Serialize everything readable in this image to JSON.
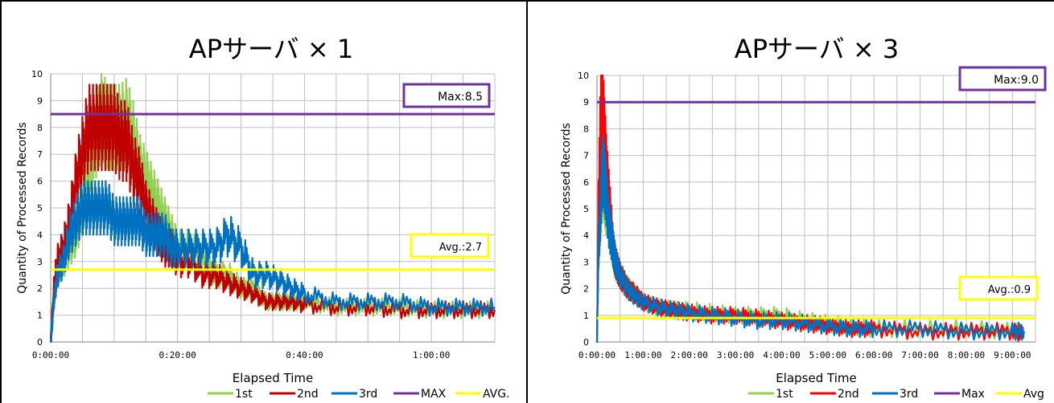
{
  "chart_data": [
    {
      "type": "line",
      "title": "APサーバ × 1",
      "xlabel": "Elapsed Time",
      "ylabel": "Quantity of Processed Records",
      "xlim": [
        "0:00:00",
        "1:10:00"
      ],
      "ylim": [
        0,
        10
      ],
      "y_ticks": [
        "0",
        "1",
        "2",
        "3",
        "4",
        "5",
        "6",
        "7",
        "8",
        "9",
        "10"
      ],
      "x_ticks": [
        "0:00:00",
        "0:20:00",
        "0:40:00",
        "1:00:00"
      ],
      "grid": true,
      "legend_position": "bottom",
      "legend": [
        "1st",
        "2nd",
        "3rd",
        "MAX",
        "AVG."
      ],
      "max": {
        "value": 8.5,
        "label": "Max:8.5"
      },
      "avg": {
        "value": 2.7,
        "label": "Avg.:2.7"
      },
      "colors": {
        "1st": "#92d050",
        "2nd": "#c00000",
        "3rd": "#0070c0",
        "max": "#7030a0",
        "avg": "#ffff00"
      },
      "series": [
        {
          "name": "1st",
          "x_minutes": [
            0,
            0.5,
            1,
            2,
            3,
            4,
            5,
            6,
            7,
            8,
            9,
            10,
            11,
            12,
            13,
            14,
            15,
            16,
            17,
            18,
            19,
            20,
            22,
            24,
            26,
            28,
            30,
            32,
            34,
            36,
            38,
            40,
            45,
            50,
            55,
            60,
            65,
            70
          ],
          "values": [
            0,
            1.5,
            2.5,
            3,
            3.5,
            4,
            5,
            6.5,
            7.5,
            8.5,
            8,
            8,
            8,
            8.2,
            7.5,
            6.5,
            6,
            5.5,
            5,
            4.5,
            4,
            3.5,
            3.5,
            3,
            2.5,
            2.5,
            2,
            2,
            1.5,
            1.5,
            1.5,
            1.5,
            1.3,
            1.3,
            1.3,
            1.2,
            1.2,
            1.2
          ]
        },
        {
          "name": "2nd",
          "x_minutes": [
            0,
            0.5,
            1,
            2,
            3,
            4,
            5,
            6,
            7,
            8,
            9,
            10,
            11,
            12,
            13,
            14,
            15,
            16,
            17,
            18,
            19,
            20,
            22,
            24,
            26,
            28,
            30,
            32,
            34,
            36,
            38,
            40,
            45,
            50,
            55,
            60,
            65,
            70
          ],
          "values": [
            0,
            2,
            3,
            3.5,
            4.5,
            6,
            7,
            8,
            8,
            8,
            8,
            8,
            7.5,
            7.5,
            6.5,
            6,
            5,
            4.5,
            4,
            3.5,
            3.5,
            3,
            3,
            2.5,
            2.5,
            2.2,
            2,
            1.8,
            1.5,
            1.5,
            1.5,
            1.4,
            1.3,
            1.3,
            1.2,
            1.2,
            1.2,
            1.2
          ]
        },
        {
          "name": "3rd",
          "x_minutes": [
            0,
            0.5,
            1,
            2,
            3,
            4,
            5,
            6,
            7,
            8,
            9,
            10,
            11,
            12,
            13,
            14,
            15,
            16,
            17,
            18,
            19,
            20,
            22,
            24,
            26,
            28,
            30,
            32,
            34,
            36,
            38,
            40,
            45,
            50,
            55,
            60,
            65,
            70
          ],
          "values": [
            0,
            1.5,
            2.5,
            3,
            4,
            4.5,
            5,
            5,
            5,
            5,
            5,
            4.5,
            4.5,
            4.5,
            4.5,
            4.5,
            4,
            4,
            4,
            4,
            3.5,
            3.5,
            3.5,
            3.5,
            3.5,
            4,
            3.5,
            2.5,
            2.5,
            2.3,
            2,
            1.8,
            1.5,
            1.5,
            1.5,
            1.3,
            1.3,
            1.3
          ]
        }
      ]
    },
    {
      "type": "line",
      "title": "APサーバ × 3",
      "xlabel": "Elapsed Time",
      "ylabel": "Quantity of Processed Records",
      "xlim": [
        "0:00:00",
        "9:30:00"
      ],
      "ylim": [
        0,
        10
      ],
      "y_ticks": [
        "0",
        "1",
        "2",
        "3",
        "4",
        "5",
        "6",
        "7",
        "8",
        "9",
        "10"
      ],
      "x_ticks": [
        "0:00:00",
        "1:00:00",
        "2:00:00",
        "3:00:00",
        "4:00:00",
        "5:00:00",
        "6:00:00",
        "7:00:00",
        "8:00:00",
        "9:00:00"
      ],
      "grid": true,
      "legend_position": "bottom",
      "legend": [
        "1st",
        "2nd",
        "3rd",
        "Max",
        "Avg"
      ],
      "max": {
        "value": 9.0,
        "label": "Max:9.0"
      },
      "avg": {
        "value": 0.9,
        "label": "Avg.:0.9"
      },
      "colors": {
        "1st": "#92d050",
        "2nd": "#ff0000",
        "3rd": "#0070c0",
        "max": "#7030a0",
        "avg": "#ffff00"
      },
      "series": [
        {
          "name": "1st",
          "x_minutes": [
            0,
            2,
            4,
            6,
            8,
            10,
            12,
            15,
            18,
            21,
            24,
            30,
            40,
            50,
            60,
            80,
            100,
            120,
            150,
            180,
            210,
            240,
            270,
            300,
            330,
            360,
            420,
            480,
            540,
            555
          ],
          "values": [
            0,
            3.5,
            4.5,
            5.5,
            6,
            5.5,
            5,
            5,
            4,
            3.5,
            3,
            2.5,
            2,
            1.8,
            1.5,
            1.3,
            1.2,
            1.2,
            1.1,
            1,
            1,
            1,
            0.8,
            0.7,
            0.6,
            0.5,
            0.5,
            0.5,
            0.4,
            0.4
          ]
        },
        {
          "name": "2nd",
          "x_minutes": [
            0,
            2,
            4,
            6,
            8,
            10,
            12,
            15,
            18,
            21,
            24,
            30,
            40,
            50,
            60,
            80,
            100,
            120,
            150,
            180,
            210,
            240,
            270,
            300,
            330,
            360,
            420,
            480,
            540,
            555
          ],
          "values": [
            0,
            5,
            7.5,
            9,
            8.5,
            7.5,
            6.5,
            5.5,
            4.5,
            3.5,
            3,
            2.5,
            2,
            1.8,
            1.5,
            1.3,
            1.2,
            1.1,
            1,
            1,
            0.9,
            0.8,
            0.7,
            0.6,
            0.5,
            0.5,
            0.4,
            0.4,
            0.4,
            0.3
          ]
        },
        {
          "name": "3rd",
          "x_minutes": [
            0,
            2,
            4,
            6,
            8,
            10,
            12,
            15,
            18,
            21,
            24,
            30,
            40,
            50,
            60,
            80,
            100,
            120,
            150,
            180,
            210,
            240,
            270,
            300,
            330,
            360,
            420,
            480,
            540,
            555
          ],
          "values": [
            0,
            3.5,
            4.5,
            6,
            6.5,
            6,
            5.5,
            4.5,
            4,
            3.5,
            3,
            2.5,
            2,
            1.7,
            1.5,
            1.3,
            1.2,
            1.1,
            1,
            0.9,
            0.8,
            0.8,
            0.7,
            0.6,
            0.5,
            0.5,
            0.5,
            0.4,
            0.4,
            0.4
          ]
        }
      ]
    }
  ]
}
